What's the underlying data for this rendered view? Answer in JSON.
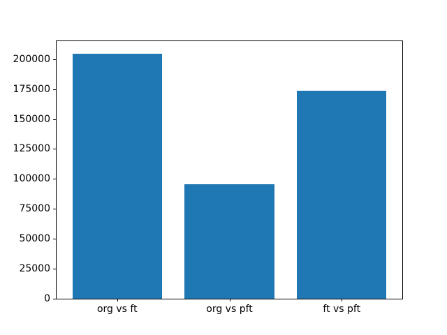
{
  "chart_data": {
    "type": "bar",
    "title": "",
    "xlabel": "",
    "ylabel": "",
    "categories": [
      "org vs ft",
      "org vs pft",
      "ft vs pft"
    ],
    "values": [
      204700,
      95300,
      173400
    ],
    "bar_color": "#1f77b4",
    "bar_width": 0.8,
    "xlim": [
      -0.54,
      2.54
    ],
    "ylim": [
      0,
      215000
    ],
    "yticks": [
      0,
      25000,
      50000,
      75000,
      100000,
      125000,
      150000,
      175000,
      200000
    ],
    "grid": false,
    "legend_position": "none",
    "spine_color": "#000000",
    "tick_label_color": "#000000",
    "background_color": "#ffffff"
  }
}
